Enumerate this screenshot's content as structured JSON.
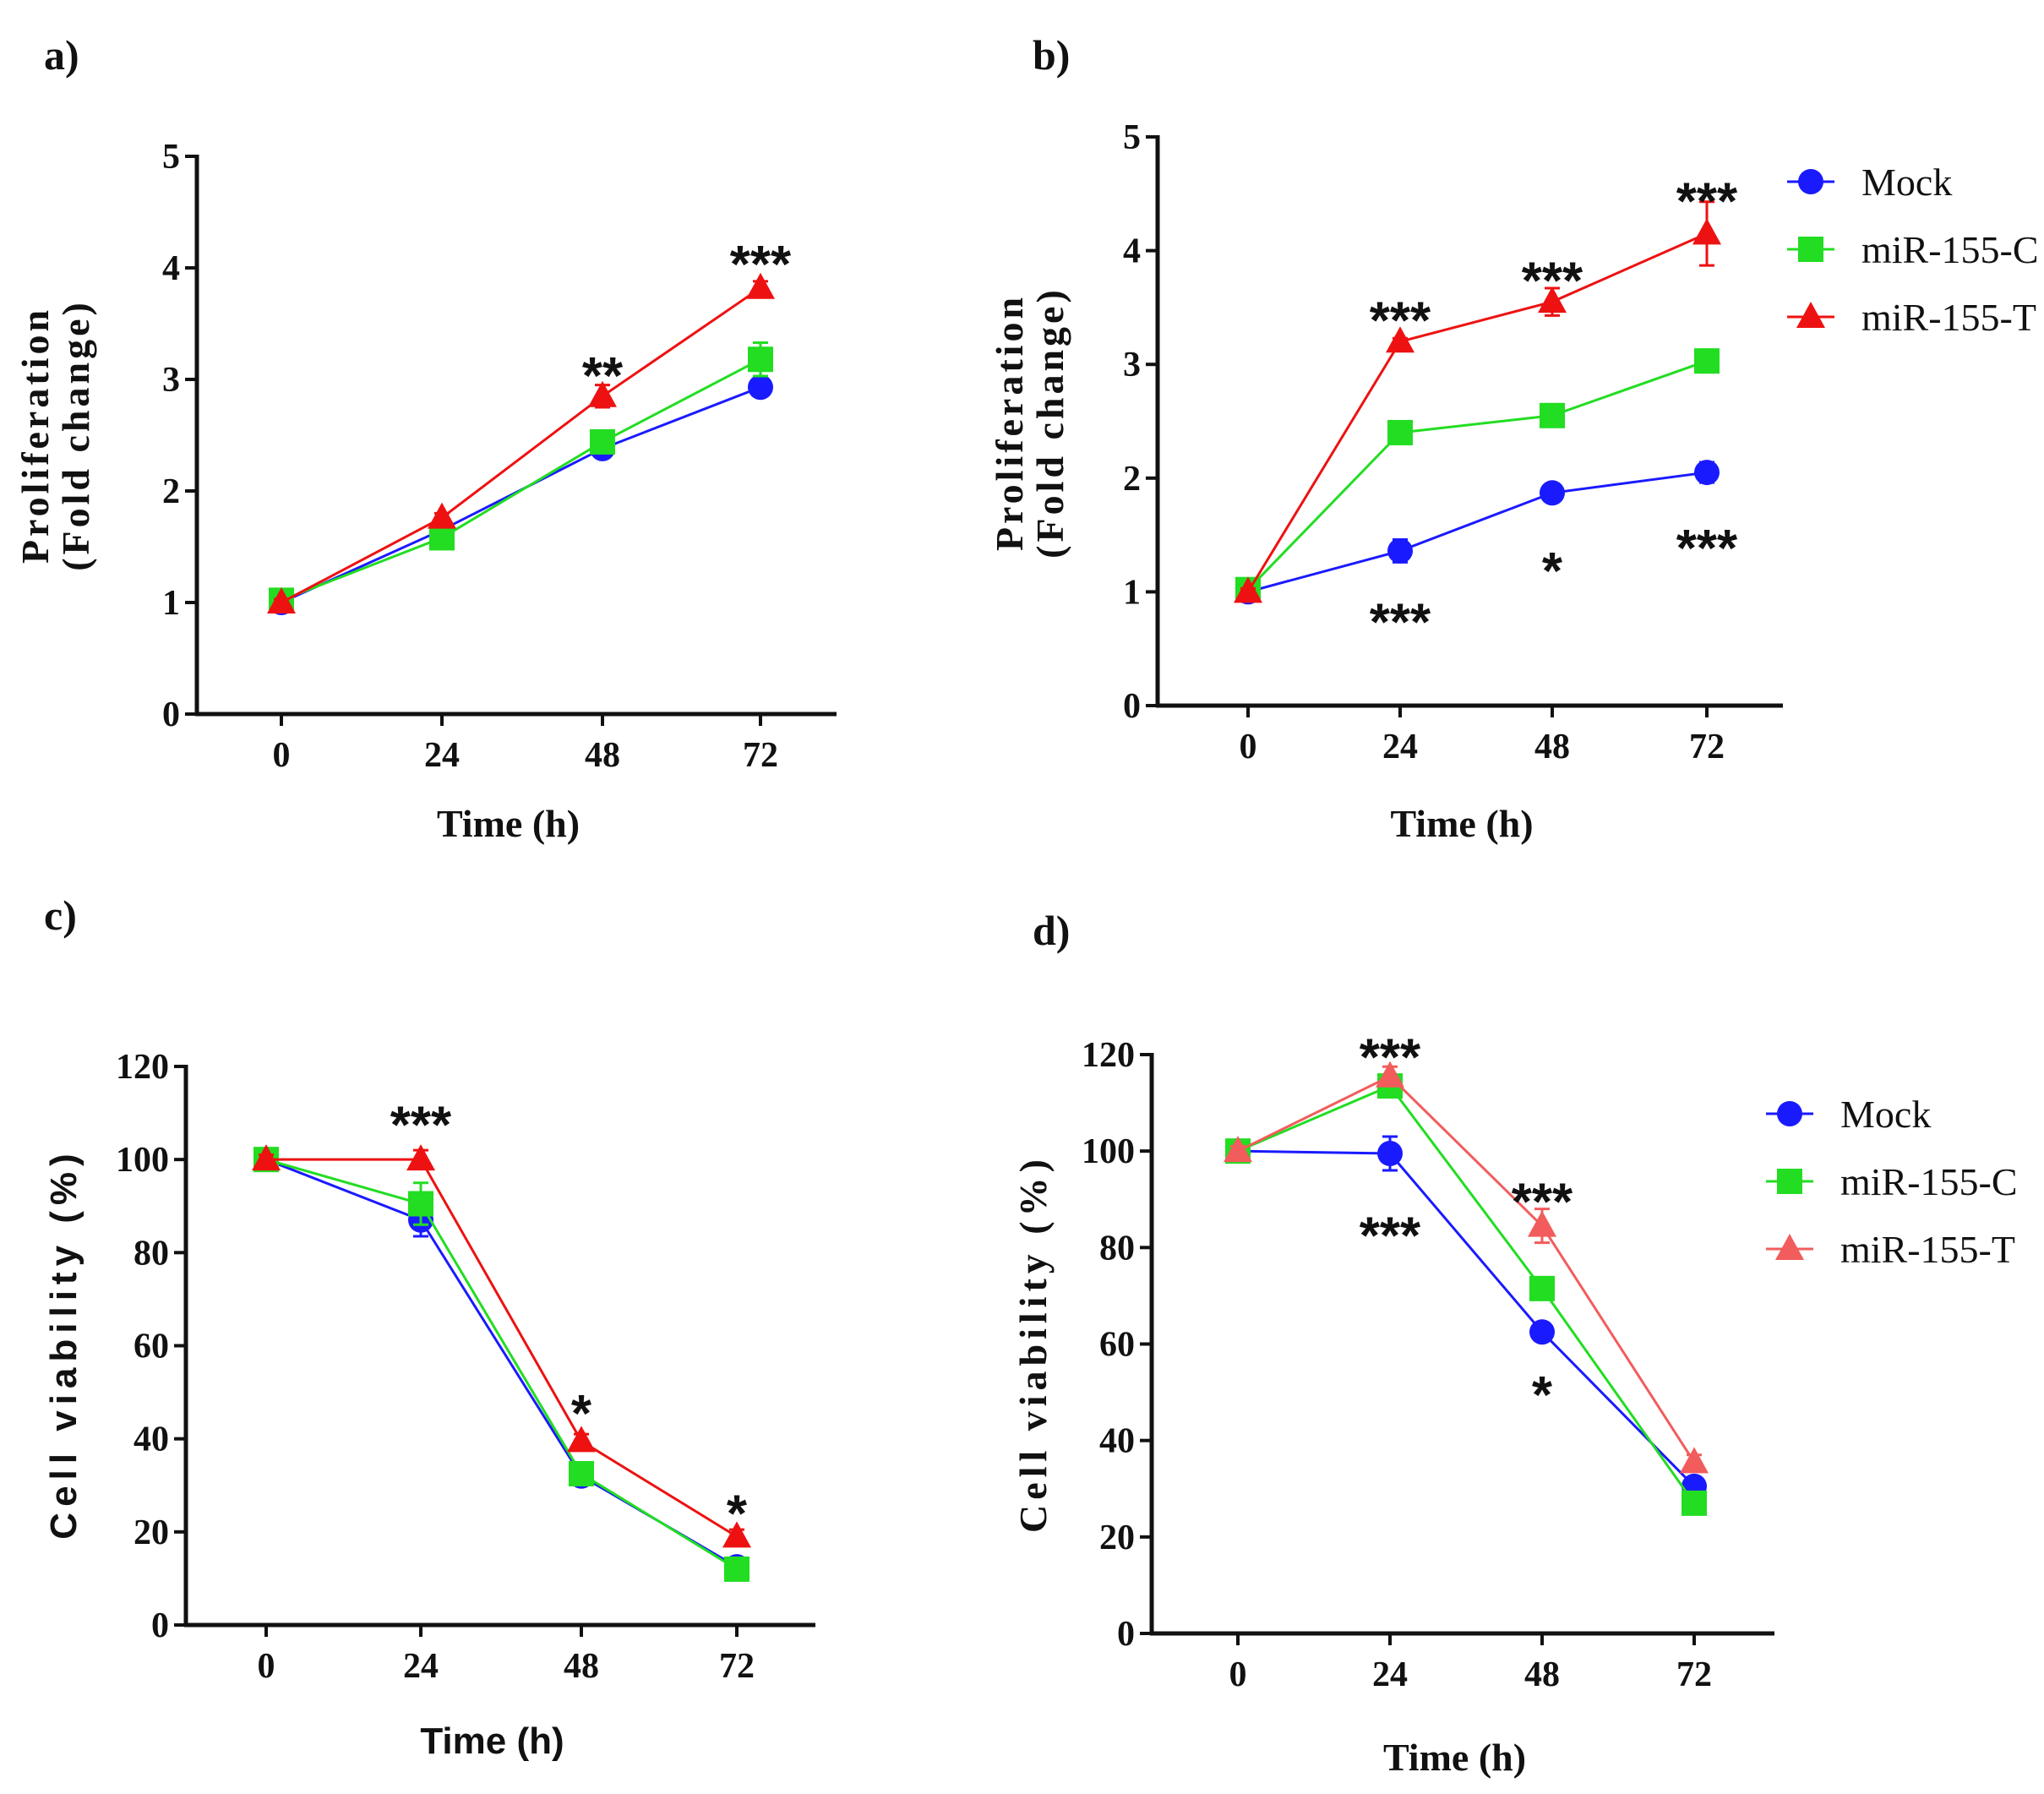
{
  "chart_data": [
    {
      "panel": "a)",
      "type": "line",
      "xlabel": "Time (h)",
      "ylabel": [
        "Proliferation",
        "(Fold change)"
      ],
      "ylim": [
        0,
        5
      ],
      "yticks": [
        "0",
        "1",
        "2",
        "3",
        "4",
        "5"
      ],
      "x": [
        0,
        24,
        48,
        72
      ],
      "xticks": [
        "0",
        "24",
        "48",
        "72"
      ],
      "legend": false,
      "series": [
        {
          "name": "Mock",
          "color": "#1a1aff",
          "marker": "circle",
          "values": [
            1.0,
            1.65,
            2.38,
            2.93
          ],
          "errors": [
            0.03,
            0.04,
            0.06,
            0.06
          ]
        },
        {
          "name": "miR-155-C",
          "color": "#22dd22",
          "marker": "square",
          "values": [
            1.02,
            1.58,
            2.44,
            3.18
          ],
          "errors": [
            0.03,
            0.05,
            0.1,
            0.15
          ]
        },
        {
          "name": "miR-155-T",
          "color": "#ee1111",
          "marker": "triangle",
          "values": [
            1.0,
            1.76,
            2.85,
            3.82
          ],
          "errors": [
            0.03,
            0.04,
            0.1,
            0.06
          ]
        }
      ],
      "annotations": [
        {
          "x": 48,
          "y": 3.1,
          "text": "**"
        },
        {
          "x": 72,
          "y": 4.1,
          "text": "***"
        }
      ]
    },
    {
      "panel": "b)",
      "type": "line",
      "xlabel": "Time (h)",
      "ylabel": [
        "Proliferation",
        "(Fold change)"
      ],
      "ylim": [
        0,
        5
      ],
      "yticks": [
        "0",
        "1",
        "2",
        "3",
        "4",
        "5"
      ],
      "x": [
        0,
        24,
        48,
        72
      ],
      "xticks": [
        "0",
        "24",
        "48",
        "72"
      ],
      "legend": true,
      "series": [
        {
          "name": "Mock",
          "color": "#1a1aff",
          "marker": "circle",
          "values": [
            1.0,
            1.36,
            1.87,
            2.05
          ],
          "errors": [
            0.03,
            0.1,
            0.05,
            0.09
          ]
        },
        {
          "name": "miR-155-C",
          "color": "#22dd22",
          "marker": "square",
          "values": [
            1.02,
            2.4,
            2.55,
            3.03
          ],
          "errors": [
            0.03,
            0.04,
            0.09,
            0.1
          ]
        },
        {
          "name": "miR-155-T",
          "color": "#ee1111",
          "marker": "triangle",
          "values": [
            1.0,
            3.2,
            3.55,
            4.15
          ],
          "errors": [
            0.03,
            0.03,
            0.12,
            0.28
          ]
        }
      ],
      "annotations": [
        {
          "x": 24,
          "y": 3.45,
          "text": "***"
        },
        {
          "x": 48,
          "y": 3.8,
          "text": "***"
        },
        {
          "x": 72,
          "y": 4.5,
          "text": "***"
        },
        {
          "x": 24,
          "y": 0.8,
          "text": "***"
        },
        {
          "x": 48,
          "y": 1.25,
          "text": "*"
        },
        {
          "x": 72,
          "y": 1.45,
          "text": "***"
        }
      ]
    },
    {
      "panel": "c)",
      "type": "line",
      "xlabel": "Time (h)",
      "ylabel": [
        "Cell viability (%)"
      ],
      "ylim": [
        0,
        120
      ],
      "yticks": [
        "0",
        "20",
        "40",
        "60",
        "80",
        "100",
        "120"
      ],
      "x": [
        0,
        24,
        48,
        72
      ],
      "xticks": [
        "0",
        "24",
        "48",
        "72"
      ],
      "legend": false,
      "series": [
        {
          "name": "Mock",
          "color": "#1a1aff",
          "marker": "circle",
          "values": [
            100,
            87,
            32,
            12.5
          ],
          "errors": [
            1,
            3.5,
            1.5,
            1
          ]
        },
        {
          "name": "miR-155-C",
          "color": "#22dd22",
          "marker": "square",
          "values": [
            100,
            90.5,
            32.5,
            12
          ],
          "errors": [
            1,
            4.5,
            1.5,
            1
          ]
        },
        {
          "name": "miR-155-T",
          "color": "#ee1111",
          "marker": "triangle",
          "values": [
            100,
            100,
            39.5,
            19
          ],
          "errors": [
            1,
            2,
            1.5,
            1.5
          ]
        }
      ],
      "annotations": [
        {
          "x": 24,
          "y": 109,
          "text": "***"
        },
        {
          "x": 48,
          "y": 47,
          "text": "*"
        },
        {
          "x": 72,
          "y": 25.5,
          "text": "*"
        }
      ]
    },
    {
      "panel": "d)",
      "type": "line",
      "xlabel": "Time (h)",
      "ylabel": [
        "Cell viability (%)"
      ],
      "ylim": [
        0,
        120
      ],
      "yticks": [
        "0",
        "20",
        "40",
        "60",
        "80",
        "100",
        "120"
      ],
      "x": [
        0,
        24,
        48,
        72
      ],
      "xticks": [
        "0",
        "24",
        "48",
        "72"
      ],
      "legend": true,
      "series": [
        {
          "name": "Mock",
          "color": "#1a1aff",
          "marker": "circle",
          "values": [
            100,
            99.5,
            62.5,
            30.5
          ],
          "errors": [
            1,
            3.5,
            1.5,
            1
          ]
        },
        {
          "name": "miR-155-C",
          "color": "#22dd22",
          "marker": "square",
          "values": [
            100,
            113.5,
            71.5,
            27
          ],
          "errors": [
            1,
            2,
            2,
            1
          ]
        },
        {
          "name": "miR-155-T",
          "color": "#f25c5c",
          "marker": "triangle",
          "values": [
            100,
            115.5,
            84.5,
            35.5
          ],
          "errors": [
            1,
            2,
            3.5,
            1.5
          ]
        }
      ],
      "annotations": [
        {
          "x": 24,
          "y": 121,
          "text": "***"
        },
        {
          "x": 48,
          "y": 91,
          "text": "***"
        },
        {
          "x": 24,
          "y": 84,
          "text": "***"
        },
        {
          "x": 48,
          "y": 51,
          "text": "*"
        }
      ]
    }
  ]
}
